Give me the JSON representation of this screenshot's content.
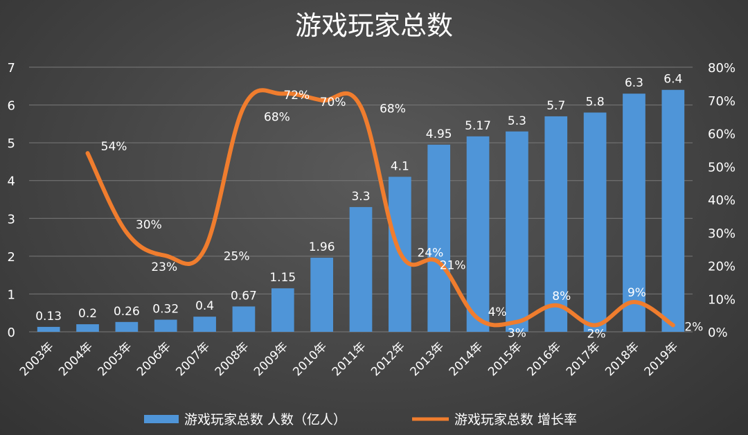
{
  "chart_data": {
    "type": "bar",
    "title": "游戏玩家总数",
    "categories": [
      "2003年",
      "2004年",
      "2005年",
      "2006年",
      "2007年",
      "2008年",
      "2009年",
      "2010年",
      "2011年",
      "2012年",
      "2013年",
      "2014年",
      "2015年",
      "2016年",
      "2017年",
      "2018年",
      "2019年"
    ],
    "series": [
      {
        "name": "游戏玩家总数 人数（亿人）",
        "type": "bar",
        "axis": "left",
        "values": [
          0.13,
          0.2,
          0.26,
          0.32,
          0.4,
          0.67,
          1.15,
          1.96,
          3.3,
          4.1,
          4.95,
          5.17,
          5.3,
          5.7,
          5.8,
          6.3,
          6.4
        ],
        "labels": [
          "0.13",
          "0.2",
          "0.26",
          "0.32",
          "0.4",
          "0.67",
          "1.15",
          "1.96",
          "3.3",
          "4.1",
          "4.95",
          "5.17",
          "5.3",
          "5.7",
          "5.8",
          "6.3",
          "6.4"
        ],
        "color": "#4f95d8"
      },
      {
        "name": "游戏玩家总数 增长率",
        "type": "line",
        "axis": "right",
        "values": [
          null,
          54,
          30,
          23,
          25,
          68,
          72,
          70,
          68,
          24,
          21,
          4,
          3,
          8,
          2,
          9,
          2
        ],
        "labels": [
          "",
          "54%",
          "30%",
          "23%",
          "25%",
          "68%",
          "72%",
          "70%",
          "68%",
          "24%",
          "21%",
          "4%",
          "3%",
          "8%",
          "2%",
          "9%",
          "2%"
        ],
        "color": "#f07d2e"
      }
    ],
    "ylim": [
      0,
      7
    ],
    "yticks": [
      "0",
      "1",
      "2",
      "3",
      "4",
      "5",
      "6",
      "7"
    ],
    "y2lim": [
      0,
      80
    ],
    "y2ticks": [
      "0%",
      "10%",
      "20%",
      "30%",
      "40%",
      "50%",
      "60%",
      "70%",
      "80%"
    ],
    "xlabel": "",
    "ylabel": "",
    "grid": true,
    "legend_position": "bottom"
  }
}
